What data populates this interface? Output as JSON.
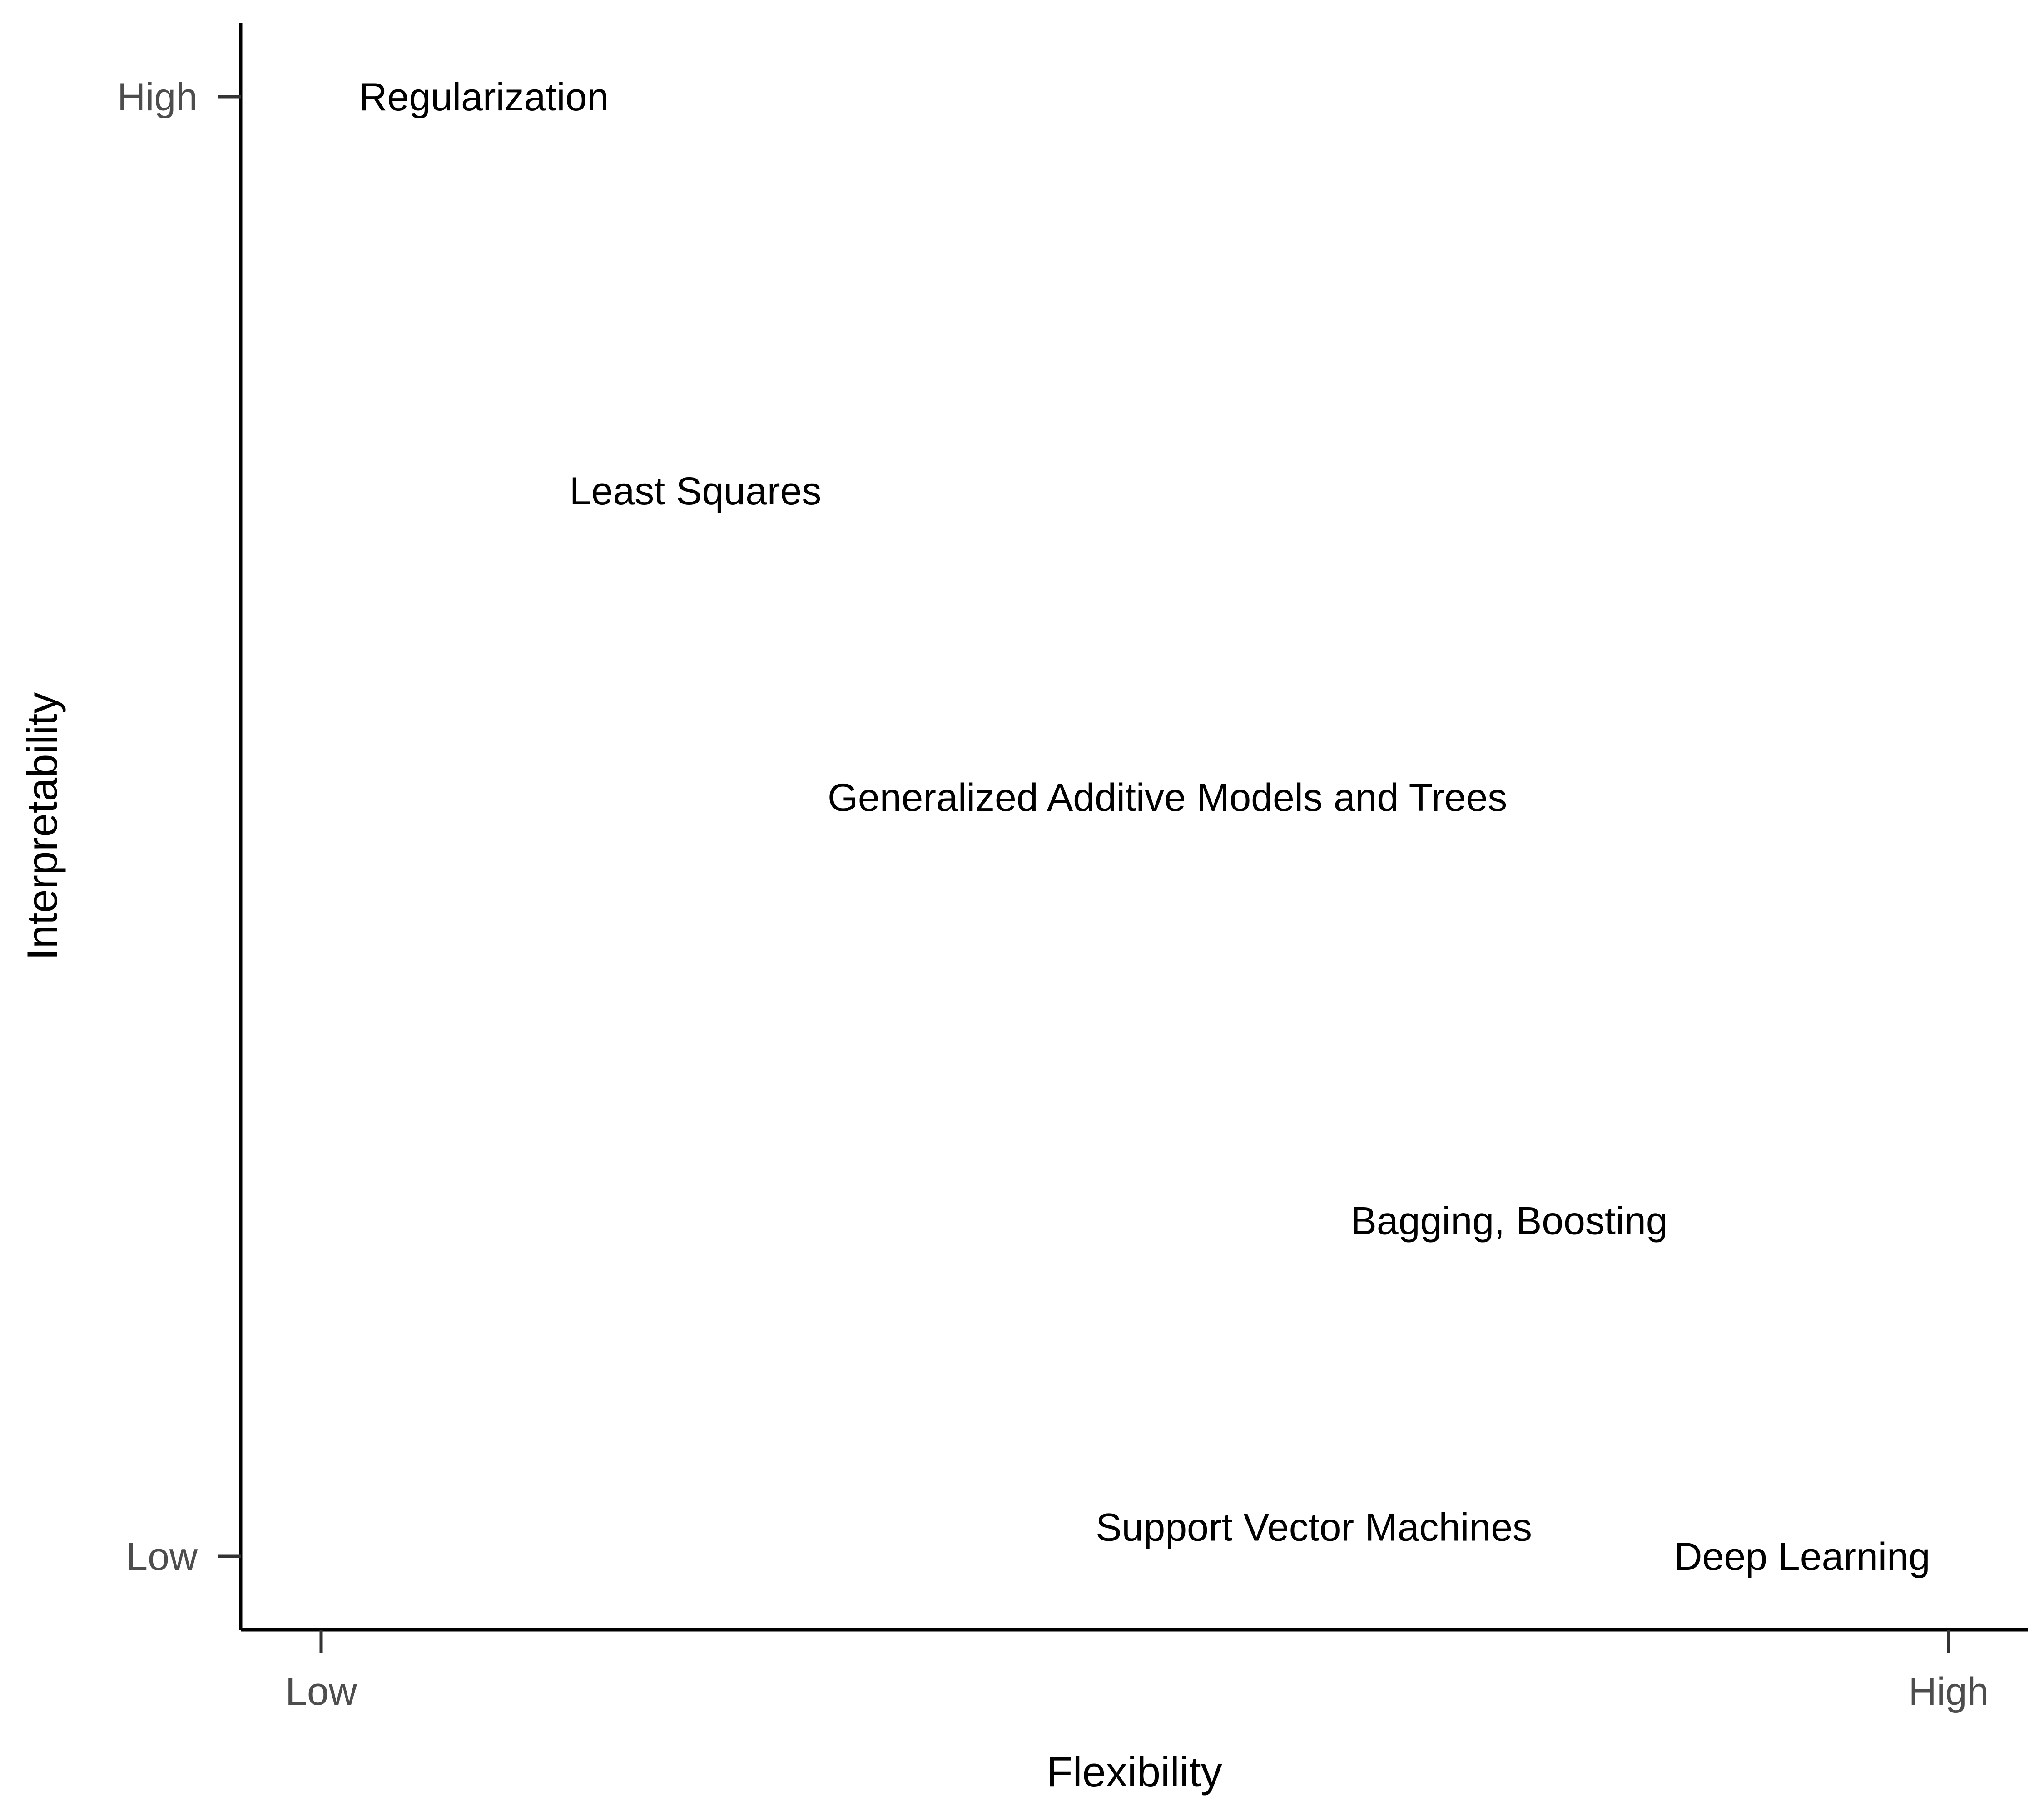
{
  "chart_data": {
    "type": "scatter",
    "title": "",
    "xlabel": "Flexibility",
    "ylabel": "Interpretability",
    "xlim": [
      0,
      1
    ],
    "ylim": [
      0,
      1
    ],
    "x_ticks": [
      {
        "value": 0,
        "label": "Low"
      },
      {
        "value": 1,
        "label": "High"
      }
    ],
    "y_ticks": [
      {
        "value": 0,
        "label": "Low"
      },
      {
        "value": 1,
        "label": "High"
      }
    ],
    "grid": false,
    "legend": "none",
    "points": [
      {
        "label": "Regularization",
        "x": 0.1,
        "y": 1.0
      },
      {
        "label": "Least Squares",
        "x": 0.23,
        "y": 0.73
      },
      {
        "label": "Generalized Additive Models and Trees",
        "x": 0.52,
        "y": 0.52
      },
      {
        "label": "Bagging, Boosting",
        "x": 0.73,
        "y": 0.23
      },
      {
        "label": "Support Vector Machines",
        "x": 0.61,
        "y": 0.02
      },
      {
        "label": "Deep Learning",
        "x": 0.91,
        "y": 0.0
      }
    ]
  }
}
